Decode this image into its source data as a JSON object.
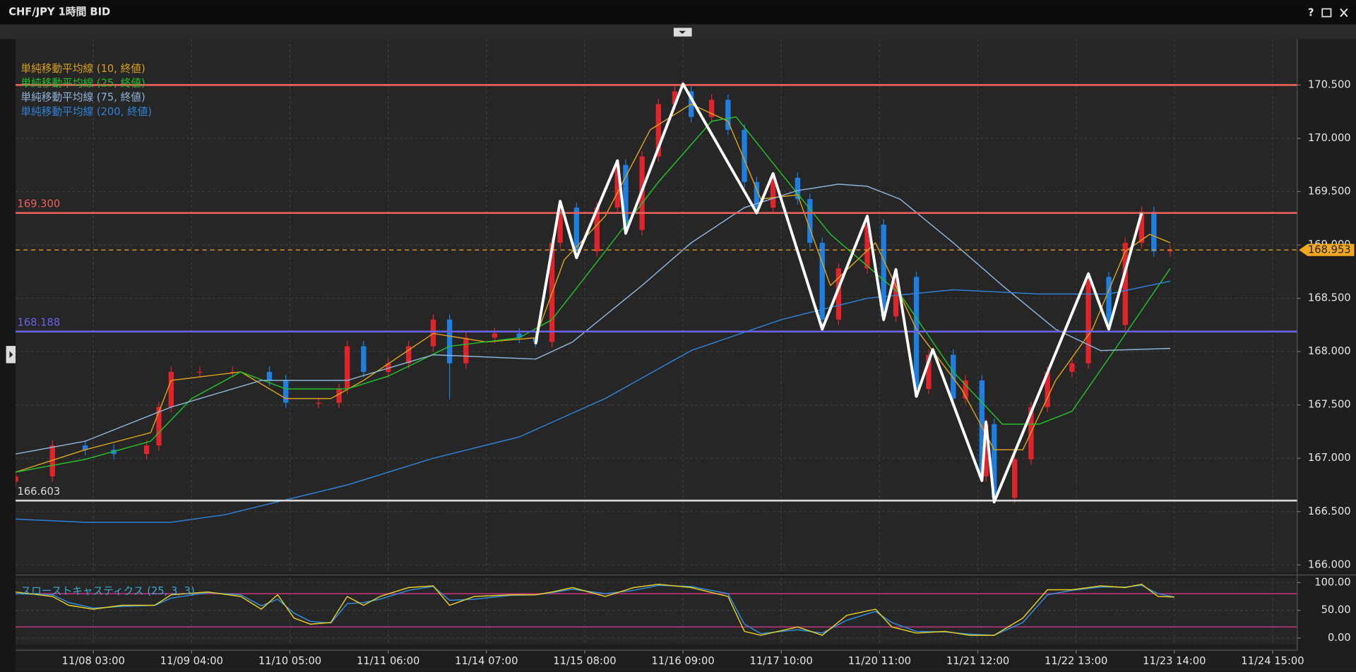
{
  "window": {
    "buttons": [
      "?"
    ]
  },
  "chart_data": [
    {
      "type": "candlestick",
      "title": "CHF/JPY 1時間 BID",
      "up_color": "#e0242c",
      "down_color": "#1f7fe0",
      "x": [
        0,
        9,
        17,
        24,
        32,
        35,
        38,
        45,
        53,
        62,
        66,
        74,
        79,
        81,
        85,
        91,
        96,
        102,
        106,
        110,
        117,
        123,
        127,
        131,
        133,
        137,
        142,
        147,
        149,
        153,
        157,
        161,
        165,
        170,
        174,
        178,
        181,
        185,
        191,
        194,
        197,
        201,
        208,
        212,
        215,
        220,
        223,
        229,
        232,
        236,
        237,
        239,
        244,
        248,
        252,
        258,
        262,
        267,
        271,
        275,
        278,
        282
      ],
      "open": [
        166.78,
        166.83,
        167.12,
        167.08,
        167.04,
        167.12,
        167.48,
        167.81,
        167.81,
        167.81,
        167.73,
        167.52,
        167.52,
        167.65,
        168.05,
        167.81,
        167.89,
        168.05,
        168.3,
        167.89,
        168.13,
        168.17,
        168.13,
        168.09,
        169.02,
        169.35,
        168.94,
        169.35,
        169.75,
        169.14,
        169.83,
        170.32,
        170.44,
        170.2,
        170.36,
        170.08,
        169.59,
        169.35,
        169.63,
        169.43,
        169.02,
        168.3,
        168.78,
        169.19,
        168.33,
        168.7,
        167.65,
        167.97,
        167.56,
        167.73,
        166.83,
        167.32,
        166.63,
        166.99,
        167.48,
        167.81,
        167.89,
        168.7,
        168.25,
        169.02,
        169.31,
        168.94
      ],
      "high": [
        166.88,
        167.17,
        167.17,
        167.13,
        167.17,
        167.53,
        167.86,
        167.86,
        167.86,
        167.86,
        167.78,
        167.57,
        167.7,
        168.1,
        168.1,
        167.94,
        168.1,
        168.35,
        168.35,
        168.18,
        168.22,
        168.22,
        168.18,
        169.07,
        169.4,
        169.4,
        169.4,
        169.8,
        169.8,
        169.88,
        170.37,
        170.49,
        170.49,
        170.41,
        170.41,
        170.13,
        169.64,
        169.68,
        169.68,
        169.48,
        169.07,
        168.83,
        169.24,
        169.24,
        168.75,
        168.75,
        168.02,
        168.02,
        167.78,
        167.78,
        167.37,
        167.37,
        167.04,
        167.53,
        167.86,
        167.94,
        168.75,
        168.75,
        169.07,
        169.36,
        169.36,
        169.0
      ],
      "low": [
        166.73,
        166.78,
        167.03,
        166.99,
        166.99,
        167.07,
        167.43,
        167.76,
        167.76,
        167.68,
        167.47,
        167.47,
        167.47,
        167.6,
        167.76,
        167.76,
        167.84,
        168.0,
        167.55,
        167.84,
        168.08,
        168.08,
        168.04,
        168.04,
        168.97,
        168.89,
        168.89,
        169.3,
        169.09,
        169.09,
        169.78,
        170.27,
        170.15,
        170.15,
        170.03,
        169.54,
        169.3,
        169.3,
        169.38,
        168.97,
        168.25,
        168.25,
        168.73,
        168.28,
        168.28,
        167.6,
        167.6,
        167.51,
        167.51,
        166.78,
        166.78,
        166.58,
        166.58,
        166.94,
        167.43,
        167.76,
        167.84,
        168.2,
        168.2,
        168.97,
        168.89,
        168.89
      ],
      "close": [
        166.83,
        167.12,
        167.08,
        167.04,
        167.12,
        167.48,
        167.81,
        167.81,
        167.81,
        167.73,
        167.52,
        167.52,
        167.65,
        168.05,
        167.81,
        167.89,
        168.05,
        168.3,
        167.89,
        168.13,
        168.17,
        168.13,
        168.09,
        169.02,
        169.35,
        168.94,
        169.35,
        169.75,
        169.14,
        169.83,
        170.32,
        170.44,
        170.2,
        170.36,
        170.08,
        169.59,
        169.35,
        169.63,
        169.43,
        169.02,
        168.3,
        168.78,
        169.19,
        168.33,
        168.7,
        167.65,
        167.97,
        167.56,
        167.73,
        166.83,
        167.32,
        166.63,
        166.99,
        167.48,
        167.81,
        167.89,
        168.7,
        168.25,
        169.02,
        169.31,
        168.94,
        168.95
      ],
      "series": [
        {
          "name": "単純移動平均線 (10, 終値)",
          "color": "#d9a01c",
          "x": [
            0,
            17,
            33,
            38,
            55,
            66,
            77,
            85,
            102,
            115,
            127,
            134,
            144,
            155,
            165,
            174,
            182,
            191,
            199,
            210,
            220,
            231,
            239,
            246,
            254,
            263,
            271,
            277,
            282
          ],
          "values": [
            166.87,
            167.08,
            167.24,
            167.73,
            167.81,
            167.56,
            167.56,
            167.73,
            168.17,
            168.09,
            168.13,
            168.86,
            169.27,
            170.08,
            170.32,
            170.16,
            169.43,
            169.47,
            168.62,
            169.02,
            168.21,
            167.65,
            167.08,
            167.08,
            167.73,
            168.21,
            168.94,
            169.1,
            169.02
          ]
        },
        {
          "name": "単純移動平均線 (25, 終値)",
          "color": "#22c02a",
          "x": [
            0,
            17,
            33,
            43,
            55,
            66,
            81,
            91,
            106,
            123,
            131,
            144,
            157,
            170,
            176,
            187,
            199,
            216,
            229,
            241,
            250,
            258,
            269,
            282
          ],
          "values": [
            166.87,
            166.99,
            167.16,
            167.56,
            167.81,
            167.65,
            167.65,
            167.77,
            168.05,
            168.13,
            168.3,
            168.94,
            169.59,
            170.16,
            170.2,
            169.67,
            169.1,
            168.54,
            167.81,
            167.32,
            167.32,
            167.44,
            168.05,
            168.78
          ]
        },
        {
          "name": "単純移動平均線 (75, 終値)",
          "color": "#8fb4d8",
          "x": [
            0,
            17,
            38,
            60,
            81,
            102,
            127,
            136,
            153,
            165,
            178,
            191,
            201,
            208,
            216,
            229,
            241,
            254,
            265,
            282
          ],
          "values": [
            167.04,
            167.16,
            167.48,
            167.73,
            167.73,
            167.97,
            167.93,
            168.09,
            168.62,
            169.02,
            169.35,
            169.51,
            169.57,
            169.55,
            169.43,
            169.02,
            168.62,
            168.21,
            168.01,
            168.03
          ]
        },
        {
          "name": "単純移動平均線 (200, 終値)",
          "color": "#2f82d6",
          "x": [
            0,
            17,
            38,
            51,
            81,
            102,
            123,
            144,
            165,
            187,
            208,
            229,
            250,
            267,
            282
          ],
          "values": [
            166.43,
            166.4,
            166.4,
            166.47,
            166.75,
            167.0,
            167.2,
            167.56,
            168.01,
            168.3,
            168.5,
            168.58,
            168.54,
            168.54,
            168.66
          ]
        }
      ],
      "zigzag": {
        "color": "#ffffff",
        "x": [
          127,
          133,
          137,
          147,
          149,
          163,
          181,
          185,
          197,
          208,
          212,
          215,
          220,
          224,
          236,
          237,
          239,
          262,
          267,
          275
        ],
        "values": [
          168.07,
          169.41,
          168.88,
          169.79,
          169.11,
          170.51,
          169.3,
          169.67,
          168.21,
          169.27,
          168.3,
          168.77,
          167.58,
          168.02,
          166.79,
          167.34,
          166.59,
          168.73,
          168.21,
          169.3
        ]
      },
      "levels": [
        {
          "value": 170.5,
          "color": "#e8605a"
        },
        {
          "value": 169.3,
          "label": "169.300",
          "color": "#e8605a"
        },
        {
          "value": 168.188,
          "label": "168.188",
          "color": "#6a62e8"
        },
        {
          "value": 166.603,
          "label": "166.603",
          "color": "#d8d8d8"
        }
      ],
      "last_price": {
        "value": 168.953,
        "label": "168.953",
        "color": "#f0a820"
      },
      "ylim": [
        165.93,
        170.93
      ],
      "yticks": [
        {
          "value": 166,
          "label": "166.000"
        },
        {
          "value": 166.5,
          "label": "166.500"
        },
        {
          "value": 167,
          "label": "167.000"
        },
        {
          "value": 167.5,
          "label": "167.500"
        },
        {
          "value": 168,
          "label": "168.000"
        },
        {
          "value": 168.5,
          "label": "168.500"
        },
        {
          "value": 169,
          "label": "169.000"
        },
        {
          "value": 169.5,
          "label": "169.500"
        },
        {
          "value": 170,
          "label": "170.000"
        },
        {
          "value": 170.5,
          "label": "170.500"
        }
      ],
      "grid": true
    },
    {
      "type": "line",
      "title": "スローストキャスティクス (25, 3, 3)",
      "x": [
        0,
        9,
        13,
        19,
        26,
        34,
        38,
        47,
        55,
        60,
        64,
        68,
        72,
        77,
        81,
        85,
        89,
        96,
        102,
        106,
        112,
        121,
        127,
        131,
        136,
        144,
        151,
        157,
        165,
        174,
        178,
        182,
        191,
        197,
        203,
        210,
        214,
        220,
        227,
        233,
        239,
        246,
        252,
        258,
        265,
        271,
        275,
        279,
        283
      ],
      "series": [
        {
          "color": "#e8d020",
          "values": [
            83,
            75,
            59,
            52,
            59,
            59,
            78,
            83,
            75,
            52,
            78,
            36,
            25,
            28,
            75,
            59,
            75,
            91,
            94,
            59,
            75,
            78,
            78,
            83,
            91,
            75,
            91,
            97,
            91,
            75,
            12,
            5,
            20,
            5,
            41,
            52,
            20,
            9,
            12,
            5,
            5,
            36,
            87,
            87,
            94,
            91,
            97,
            75,
            74
          ]
        },
        {
          "color": "#2f8fe0",
          "values": [
            80,
            78,
            64,
            54,
            57,
            59,
            72,
            82,
            78,
            58,
            70,
            45,
            30,
            27,
            62,
            64,
            70,
            86,
            93,
            68,
            70,
            77,
            78,
            82,
            88,
            80,
            86,
            95,
            93,
            80,
            25,
            8,
            15,
            9,
            32,
            48,
            28,
            12,
            11,
            7,
            5,
            28,
            78,
            86,
            92,
            92,
            95,
            80,
            74
          ]
        }
      ],
      "levels": [
        {
          "value": 80,
          "color": "#a8306e"
        },
        {
          "value": 20,
          "color": "#a8306e"
        }
      ],
      "ylim": [
        -11,
        109
      ],
      "yticks": [
        {
          "value": 0,
          "label": "0.00"
        },
        {
          "value": 50,
          "label": "50.00"
        },
        {
          "value": 100,
          "label": "100.00"
        }
      ],
      "xlim": [
        0,
        313
      ],
      "xticks": [
        {
          "value": 19,
          "label": "11/08 03:00"
        },
        {
          "value": 43,
          "label": "11/09 04:00"
        },
        {
          "value": 67,
          "label": "11/10 05:00"
        },
        {
          "value": 91,
          "label": "11/11 06:00"
        },
        {
          "value": 115,
          "label": "11/14 07:00"
        },
        {
          "value": 139,
          "label": "11/15 08:00"
        },
        {
          "value": 163,
          "label": "11/16 09:00"
        },
        {
          "value": 187,
          "label": "11/17 10:00"
        },
        {
          "value": 211,
          "label": "11/20 11:00"
        },
        {
          "value": 235,
          "label": "11/21 12:00"
        },
        {
          "value": 259,
          "label": "11/22 13:00"
        },
        {
          "value": 283,
          "label": "11/23 14:00"
        },
        {
          "value": 307,
          "label": "11/24 15:00"
        }
      ],
      "grid": true
    }
  ]
}
